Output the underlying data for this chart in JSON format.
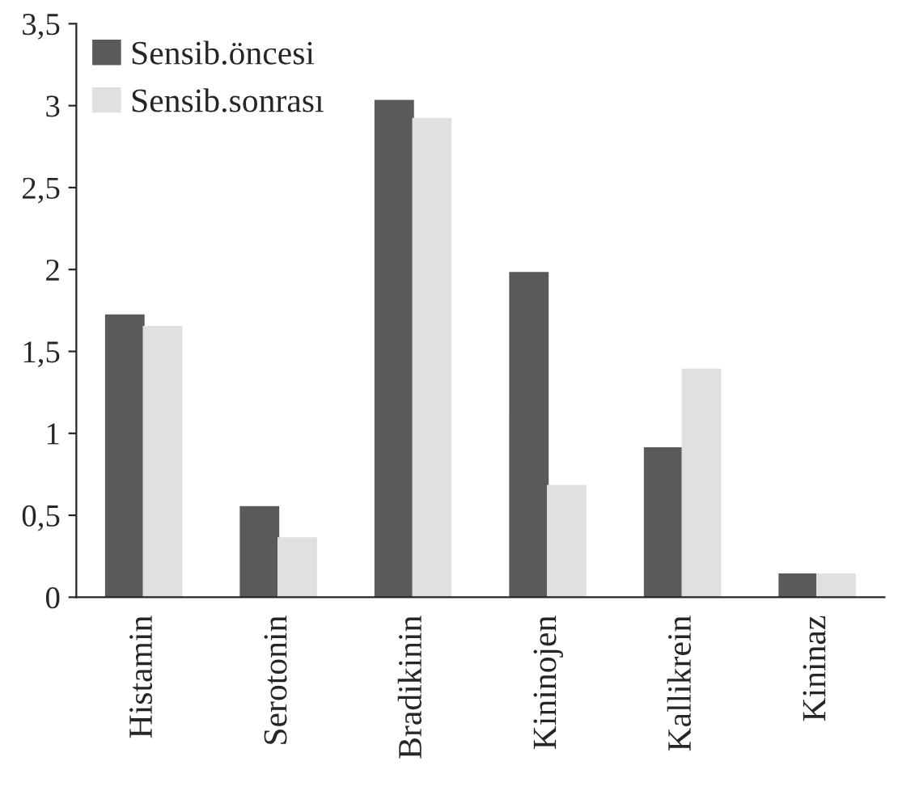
{
  "chart_data": {
    "type": "bar",
    "categories": [
      "Histamin",
      "Serotonin",
      "Bradikinin",
      "Kininojen",
      "Kallikrein",
      "Kininaz"
    ],
    "series": [
      {
        "name": "Sensib.öncesi",
        "color": "#5a5a5a",
        "values": [
          1.72,
          0.55,
          3.03,
          1.98,
          0.91,
          0.14
        ]
      },
      {
        "name": "Sensib.sonrası",
        "color": "#e0e0e0",
        "values": [
          1.65,
          0.36,
          2.92,
          0.68,
          1.39,
          0.14
        ]
      }
    ],
    "ylim": [
      0,
      3.5
    ],
    "yticks": [
      {
        "value": 0,
        "label": "0"
      },
      {
        "value": 0.5,
        "label": "0,5"
      },
      {
        "value": 1,
        "label": "1"
      },
      {
        "value": 1.5,
        "label": "1,5"
      },
      {
        "value": 2,
        "label": "2"
      },
      {
        "value": 2.5,
        "label": "2,5"
      },
      {
        "value": 3,
        "label": "3"
      },
      {
        "value": 3.5,
        "label": "3,5"
      }
    ],
    "grid": false,
    "legend": "top left"
  }
}
